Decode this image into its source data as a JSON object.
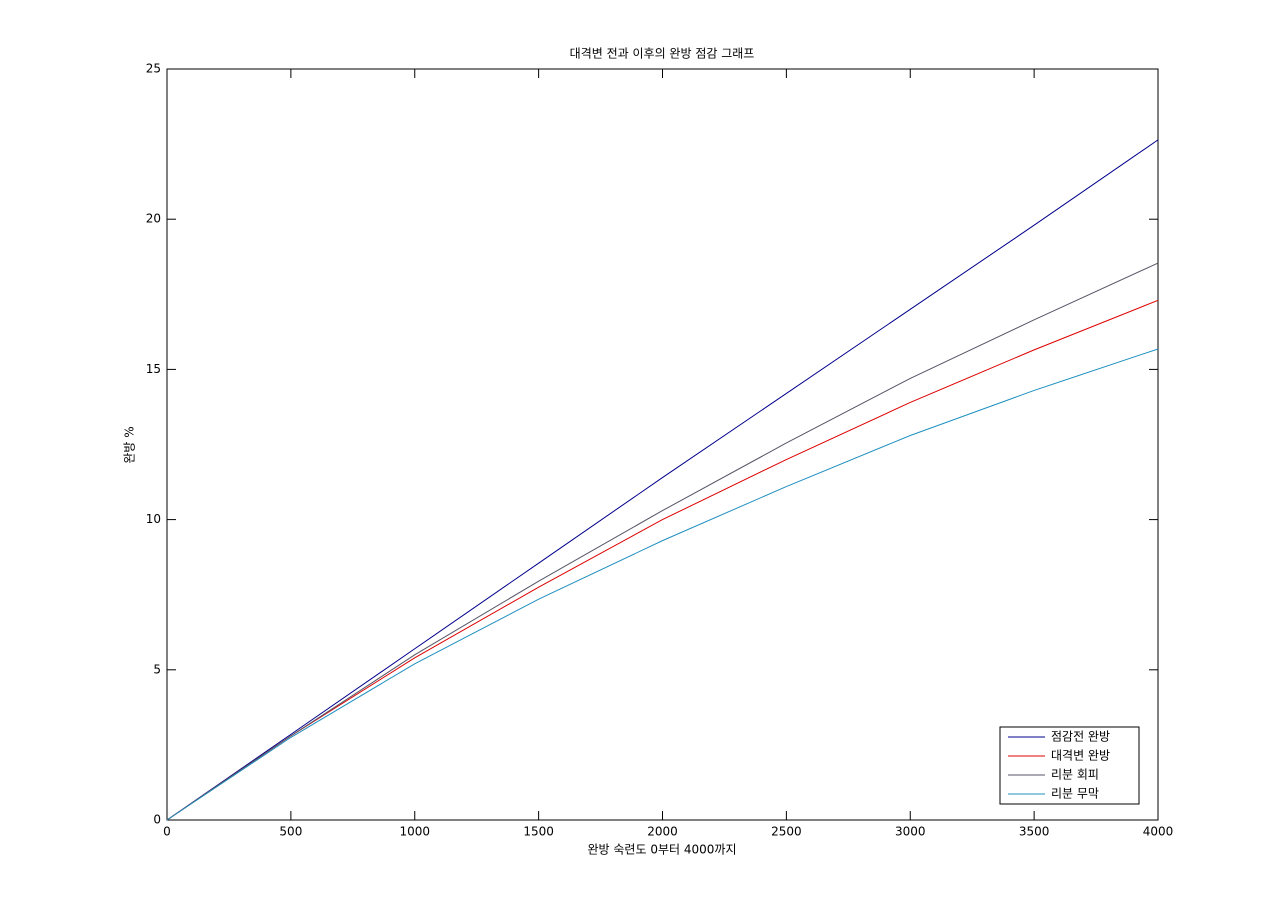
{
  "chart_data": {
    "type": "line",
    "title": "대격변 전과 이후의 완방 점감 그래프",
    "xlabel": "완방 숙련도 0부터 4000까지",
    "ylabel": "완방 %",
    "x": [
      0,
      500,
      1000,
      1500,
      2000,
      2500,
      3000,
      3500,
      4000
    ],
    "series": [
      {
        "name": "점감전 완방",
        "color": "#00008b",
        "values": [
          0,
          2.85,
          5.7,
          8.55,
          11.4,
          14.2,
          17.0,
          19.8,
          22.64
        ]
      },
      {
        "name": "대격변 완방",
        "color": "#dd0000",
        "values": [
          0,
          2.8,
          5.4,
          7.75,
          10.0,
          12.0,
          13.9,
          15.65,
          17.3
        ]
      },
      {
        "name": "리분 회피",
        "color": "#555566",
        "values": [
          0,
          2.8,
          5.5,
          7.95,
          10.3,
          12.55,
          14.7,
          16.65,
          18.54
        ]
      },
      {
        "name": "리분 무막",
        "color": "#1f8fbf",
        "values": [
          0,
          2.75,
          5.2,
          7.35,
          9.3,
          11.1,
          12.8,
          14.3,
          15.68
        ]
      }
    ],
    "xlim": [
      0,
      4000
    ],
    "xticks": [
      0,
      500,
      1000,
      1500,
      2000,
      2500,
      3000,
      3500,
      4000
    ],
    "ylim": [
      0,
      25
    ],
    "yticks": [
      0,
      5,
      10,
      15,
      20,
      25
    ],
    "grid": false,
    "legend": "lower right"
  }
}
